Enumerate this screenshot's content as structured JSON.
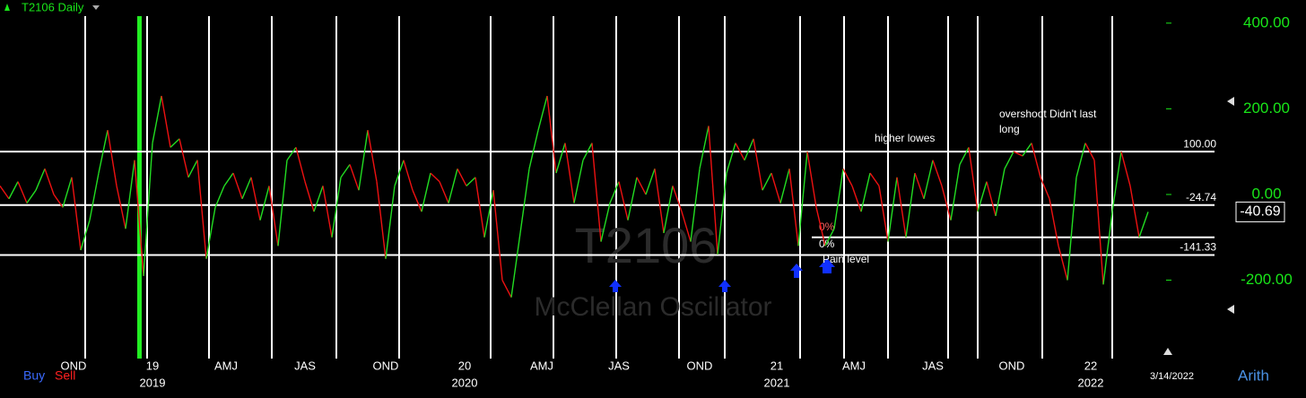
{
  "header": {
    "title": "T2106 Daily"
  },
  "chart_data": {
    "type": "line",
    "watermark": [
      "T2106",
      "McClellan Oscillator"
    ],
    "series": [
      {
        "name": "McClellan Oscillator",
        "up_color": "#22dd22",
        "down_color": "#ee1111",
        "values": [
          20,
          -10,
          30,
          -20,
          10,
          60,
          0,
          -30,
          40,
          -130,
          -60,
          50,
          150,
          20,
          -80,
          80,
          -190,
          120,
          230,
          110,
          130,
          40,
          80,
          -150,
          -30,
          20,
          50,
          -10,
          40,
          -60,
          20,
          -120,
          80,
          110,
          30,
          -40,
          20,
          -100,
          40,
          70,
          10,
          150,
          30,
          -150,
          20,
          80,
          10,
          -40,
          50,
          30,
          -20,
          60,
          20,
          40,
          -100,
          10,
          -200,
          -240,
          -90,
          60,
          150,
          230,
          50,
          120,
          -20,
          80,
          120,
          -110,
          -20,
          30,
          -60,
          40,
          0,
          60,
          -90,
          20,
          -40,
          -110,
          60,
          160,
          -140,
          50,
          120,
          80,
          130,
          10,
          50,
          -20,
          60,
          -120,
          100,
          -30,
          -120,
          -80,
          60,
          20,
          -40,
          50,
          20,
          -110,
          40,
          -100,
          50,
          -10,
          80,
          20,
          -60,
          70,
          110,
          -40,
          30,
          -50,
          60,
          100,
          90,
          120,
          40,
          -10,
          -120,
          -200,
          40,
          120,
          80,
          -210,
          -40,
          100,
          20,
          -100,
          -40.69
        ]
      }
    ],
    "ylim": [
      -383,
      454
    ],
    "yticks": [
      {
        "value": 400,
        "label": "400.00"
      },
      {
        "value": 200,
        "label": "200.00"
      },
      {
        "value": 0,
        "label": "0.00"
      },
      {
        "value": -200,
        "label": "-200.00"
      }
    ],
    "reference_lines": [
      {
        "value": 100,
        "label": "100.00"
      },
      {
        "value": -24.74,
        "label": "-24.74"
      },
      {
        "value": -141.33,
        "label": "-141.33"
      }
    ],
    "pain_level": {
      "value": -100,
      "labels": [
        "0%",
        "0%",
        "Pain level"
      ]
    },
    "x_labels": [
      "OND",
      "19",
      "AMJ",
      "JAS",
      "OND",
      "20",
      "AMJ",
      "JAS",
      "OND",
      "21",
      "AMJ",
      "JAS",
      "OND",
      "22"
    ],
    "year_labels": [
      "2019",
      "2020",
      "2021",
      "2022"
    ],
    "date_label": "3/14/2022",
    "annotations": [
      "higher lowes",
      "overshoot Didn't last long"
    ],
    "footer": {
      "buy": "Buy",
      "sell": "Sell",
      "scale": "Arith"
    }
  }
}
